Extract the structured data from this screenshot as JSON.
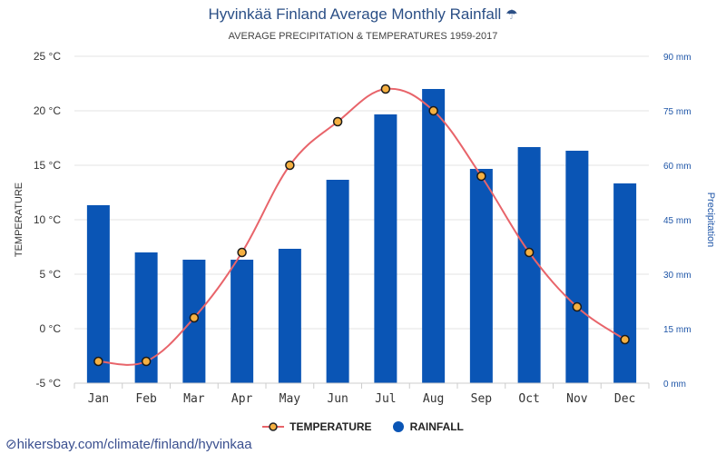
{
  "title": "Hyvinkää Finland Average Monthly Rainfall",
  "title_icon": "umbrella-icon",
  "subtitle": "AVERAGE PRECIPITATION & TEMPERATURES 1959-2017",
  "source": "hikersbay.com/climate/finland/hyvinkaa",
  "colors": {
    "rainfall": "#0a55b5",
    "temperature_line": "#e8646a",
    "marker_fill": "#f5b041",
    "title": "#2b4f86",
    "right_axis": "#1f56a8"
  },
  "chart_data": {
    "type": "bar",
    "categories": [
      "Jan",
      "Feb",
      "Mar",
      "Apr",
      "May",
      "Jun",
      "Jul",
      "Aug",
      "Sep",
      "Oct",
      "Nov",
      "Dec"
    ],
    "series": [
      {
        "name": "RAINFALL",
        "type": "bar",
        "axis": "right",
        "values": [
          49,
          36,
          34,
          34,
          37,
          56,
          74,
          81,
          59,
          65,
          64,
          55
        ]
      },
      {
        "name": "TEMPERATURE",
        "type": "line",
        "axis": "left",
        "values": [
          -3,
          -3,
          1,
          7,
          15,
          19,
          22,
          20,
          14,
          7,
          2,
          -1
        ]
      }
    ],
    "left_axis": {
      "label": "TEMPERATURE",
      "range": [
        -5,
        25
      ],
      "ticks": [
        -5,
        0,
        5,
        10,
        15,
        20,
        25
      ],
      "tick_labels": [
        "-5 °C",
        "0 °C",
        "5 °C",
        "10 °C",
        "15 °C",
        "20 °C",
        "25 °C"
      ]
    },
    "right_axis": {
      "label": "Precipitation",
      "range": [
        0,
        90
      ],
      "ticks": [
        0,
        15,
        30,
        45,
        60,
        75,
        90
      ],
      "tick_labels": [
        "0 mm",
        "15 mm",
        "30 mm",
        "45 mm",
        "60 mm",
        "75 mm",
        "90 mm"
      ]
    },
    "grid": true,
    "legend": "bottom-center"
  }
}
